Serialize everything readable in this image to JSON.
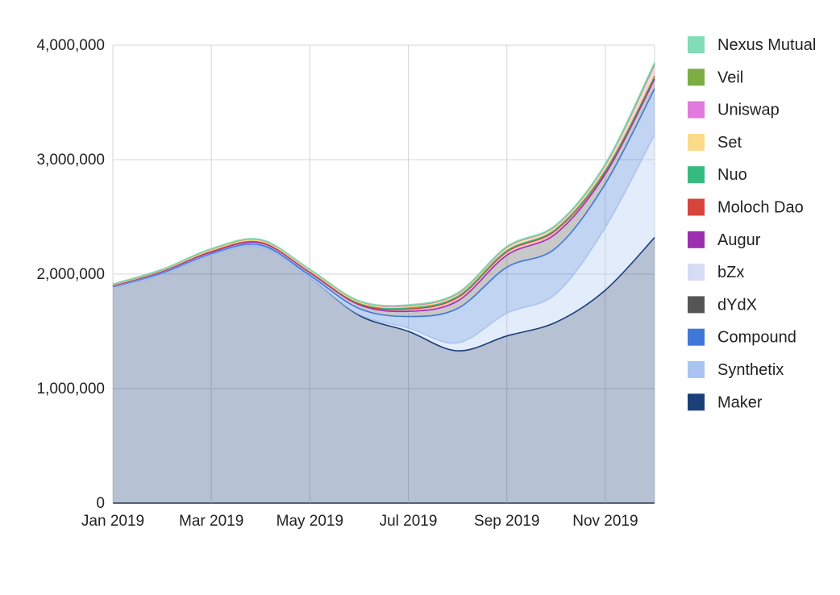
{
  "chart_data": {
    "type": "area",
    "stacked": true,
    "title": "",
    "xlabel": "",
    "ylabel": "",
    "ylim": [
      0,
      4000000
    ],
    "xlim": [
      "2019-01",
      "2019-12"
    ],
    "grid": true,
    "legend_position": "right",
    "x": [
      "2019-01",
      "2019-02",
      "2019-03",
      "2019-04",
      "2019-05",
      "2019-06",
      "2019-07",
      "2019-08",
      "2019-09",
      "2019-10",
      "2019-11",
      "2019-12"
    ],
    "x_tick_labels": [
      "Jan 2019",
      "Mar 2019",
      "May 2019",
      "Jul 2019",
      "Sep 2019",
      "Nov 2019"
    ],
    "y_tick_labels": [
      "4,000,000",
      "3,000,000",
      "2,000,000",
      "1,000,000",
      "0"
    ],
    "legend": [
      "Nexus Mutual",
      "Veil",
      "Uniswap",
      "Set",
      "Nuo",
      "Moloch Dao",
      "Augur",
      "bZx",
      "dYdX",
      "Compound",
      "Synthetix",
      "Maker"
    ],
    "series": [
      {
        "name": "Maker",
        "color": "#1c3f7a",
        "values": [
          1880000,
          2000000,
          2170000,
          2240000,
          1970000,
          1640000,
          1500000,
          1330000,
          1460000,
          1580000,
          1860000,
          2320000
        ]
      },
      {
        "name": "Synthetix",
        "color": "#a9c4f0",
        "values": [
          0,
          0,
          0,
          0,
          0,
          10000,
          30000,
          70000,
          200000,
          250000,
          550000,
          900000
        ]
      },
      {
        "name": "Compound",
        "color": "#3f78d8",
        "values": [
          10000,
          10000,
          10000,
          15000,
          20000,
          50000,
          100000,
          300000,
          400000,
          400000,
          380000,
          400000
        ]
      },
      {
        "name": "dYdX",
        "color": "#555555",
        "values": [
          5000,
          10000,
          10000,
          15000,
          20000,
          30000,
          40000,
          60000,
          100000,
          120000,
          80000,
          80000
        ]
      },
      {
        "name": "bZx",
        "color": "#d6dcf5",
        "values": [
          0,
          0,
          0,
          0,
          0,
          0,
          0,
          0,
          0,
          0,
          0,
          0
        ]
      },
      {
        "name": "Augur",
        "color": "#9b2fae",
        "values": [
          2000,
          3000,
          3000,
          3000,
          3000,
          3000,
          5000,
          5000,
          5000,
          5000,
          5000,
          5000
        ]
      },
      {
        "name": "Moloch Dao",
        "color": "#d7443e",
        "values": [
          3000,
          5000,
          8000,
          8000,
          8000,
          8000,
          20000,
          30000,
          30000,
          30000,
          20000,
          20000
        ]
      },
      {
        "name": "Nuo",
        "color": "#36bb7e",
        "values": [
          5000,
          5000,
          8000,
          8000,
          8000,
          8000,
          10000,
          10000,
          10000,
          10000,
          10000,
          10000
        ]
      },
      {
        "name": "Set",
        "color": "#fadb8a",
        "values": [
          0,
          0,
          0,
          0,
          0,
          5000,
          10000,
          15000,
          20000,
          20000,
          20000,
          15000
        ]
      },
      {
        "name": "Uniswap",
        "color": "#e07ade",
        "values": [
          5000,
          5000,
          10000,
          10000,
          10000,
          10000,
          10000,
          10000,
          10000,
          10000,
          30000,
          80000
        ]
      },
      {
        "name": "Veil",
        "color": "#7cae44",
        "values": [
          2000,
          2000,
          2000,
          2000,
          2000,
          2000,
          5000,
          5000,
          5000,
          5000,
          5000,
          5000
        ]
      },
      {
        "name": "Nexus Mutual",
        "color": "#82dcb8",
        "values": [
          2000,
          2000,
          2000,
          2000,
          2000,
          2000,
          2000,
          2000,
          2000,
          2000,
          5000,
          15000
        ]
      }
    ]
  }
}
